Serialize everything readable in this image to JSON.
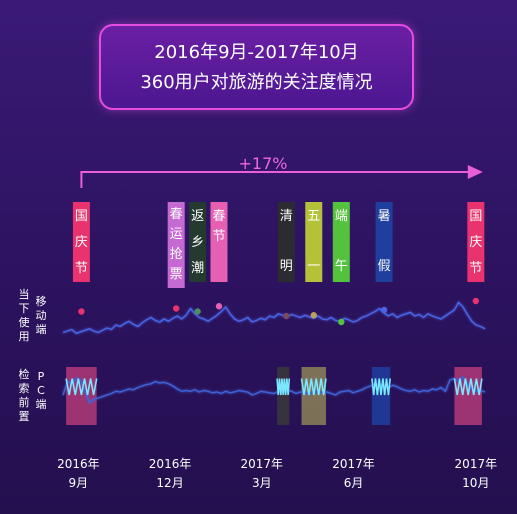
{
  "title": {
    "line1": "2016年9月-2017年10月",
    "line2": "360用户对旅游的关注度情况"
  },
  "growth_label": "+17%",
  "chart_data": {
    "type": "line",
    "x_ticks": [
      {
        "year": "2016年",
        "month": "9月",
        "t": 0
      },
      {
        "year": "2016年",
        "month": "12月",
        "t": 3
      },
      {
        "year": "2017年",
        "month": "3月",
        "t": 6
      },
      {
        "year": "2017年",
        "month": "6月",
        "t": 9
      },
      {
        "year": "2017年",
        "month": "10月",
        "t": 13
      }
    ],
    "xlim": [
      -0.6,
      13.3
    ],
    "grid": false,
    "holidays": [
      {
        "label": "国庆节",
        "t": 0.1,
        "color": "#e8336e"
      },
      {
        "label": "春运抢票",
        "t": 3.2,
        "color": "#c46ad2"
      },
      {
        "label": "返乡潮",
        "t": 3.9,
        "color": "#243a2f"
      },
      {
        "label": "春节",
        "t": 4.6,
        "color": "#e55fb3"
      },
      {
        "label": "清明",
        "t": 6.8,
        "color": "#2b2b32"
      },
      {
        "label": "五一",
        "t": 7.7,
        "color": "#b4c23a"
      },
      {
        "label": "端午",
        "t": 8.6,
        "color": "#55c23e"
      },
      {
        "label": "暑假",
        "t": 10.0,
        "color": "#1f3f9e"
      },
      {
        "label": "国庆节",
        "t": 13.0,
        "color": "#e8336e"
      }
    ],
    "series": [
      {
        "name": "当下使用 移动端",
        "label_left": "当下使用",
        "label_right": "移动端",
        "color": "#4a66e8",
        "values": [
          30,
          32,
          34,
          29,
          31,
          33,
          35,
          32,
          30,
          33,
          36,
          34,
          40,
          38,
          42,
          45,
          41,
          38,
          43,
          47,
          50,
          46,
          44,
          48,
          45,
          49,
          52,
          48,
          53,
          62,
          55,
          50,
          48,
          45,
          49,
          53,
          58,
          64,
          55,
          48,
          45,
          47,
          50,
          44,
          46,
          49,
          47,
          52,
          50,
          55,
          53,
          51,
          54,
          52,
          50,
          53,
          51,
          49,
          52,
          48,
          47,
          50,
          46,
          45,
          49,
          47,
          44,
          46,
          50,
          52,
          55,
          58,
          62,
          56,
          52,
          55,
          50,
          53,
          55,
          57,
          52,
          54,
          50,
          55,
          52,
          50,
          48,
          52,
          56,
          60,
          70,
          64,
          54,
          45,
          40,
          38,
          35
        ],
        "peaks": [
          {
            "t": 0.1,
            "value": 58,
            "color": "#e8336e"
          },
          {
            "t": 3.2,
            "value": 62,
            "color": "#e8336e"
          },
          {
            "t": 3.9,
            "value": 58,
            "color": "#4e8a5c"
          },
          {
            "t": 4.6,
            "value": 65,
            "color": "#e55fb3"
          },
          {
            "t": 6.8,
            "value": 52,
            "color": "#7a4a62"
          },
          {
            "t": 7.7,
            "value": 53,
            "color": "#b9a060"
          },
          {
            "t": 8.6,
            "value": 44,
            "color": "#55c23e"
          },
          {
            "t": 10.0,
            "value": 60,
            "color": "#4a66e8"
          },
          {
            "t": 13.0,
            "value": 72,
            "color": "#e8336e"
          }
        ]
      },
      {
        "name": "检索前置 PC端",
        "label_left": "检索前置",
        "label_right": "PC端",
        "color": "#3f63d8",
        "values": [
          40,
          58,
          55,
          62,
          60,
          45,
          30,
          34,
          36,
          38,
          40,
          42,
          45,
          44,
          46,
          48,
          47,
          50,
          52,
          54,
          55,
          58,
          56,
          57,
          55,
          52,
          48,
          45,
          46,
          45,
          47,
          44,
          46,
          45,
          43,
          44,
          42,
          45,
          43,
          44,
          46,
          45,
          44,
          40,
          42,
          45,
          44,
          43,
          42,
          45,
          44,
          46,
          45,
          42,
          44,
          43,
          42,
          44,
          45,
          43,
          44,
          42,
          40,
          44,
          45,
          46,
          43,
          45,
          47,
          50,
          52,
          55,
          54,
          52,
          50,
          53,
          51,
          48,
          46,
          45,
          47,
          44,
          46,
          45,
          48,
          47,
          50,
          45,
          60,
          62,
          58,
          64,
          55,
          48,
          45,
          46,
          44
        ]
      }
    ],
    "highlight_windows": [
      {
        "t0": -0.4,
        "t1": 0.6,
        "color": "#b23a78",
        "series": "PC端"
      },
      {
        "t0": 6.5,
        "t1": 6.9,
        "color": "#3a3a3a",
        "series": "PC端"
      },
      {
        "t0": 7.3,
        "t1": 8.1,
        "color": "#8c8358",
        "series": "PC端"
      },
      {
        "t0": 9.6,
        "t1": 10.2,
        "color": "#1f3f9e",
        "series": "PC端"
      },
      {
        "t0": 12.3,
        "t1": 13.2,
        "color": "#b23a78",
        "series": "PC端"
      }
    ]
  }
}
